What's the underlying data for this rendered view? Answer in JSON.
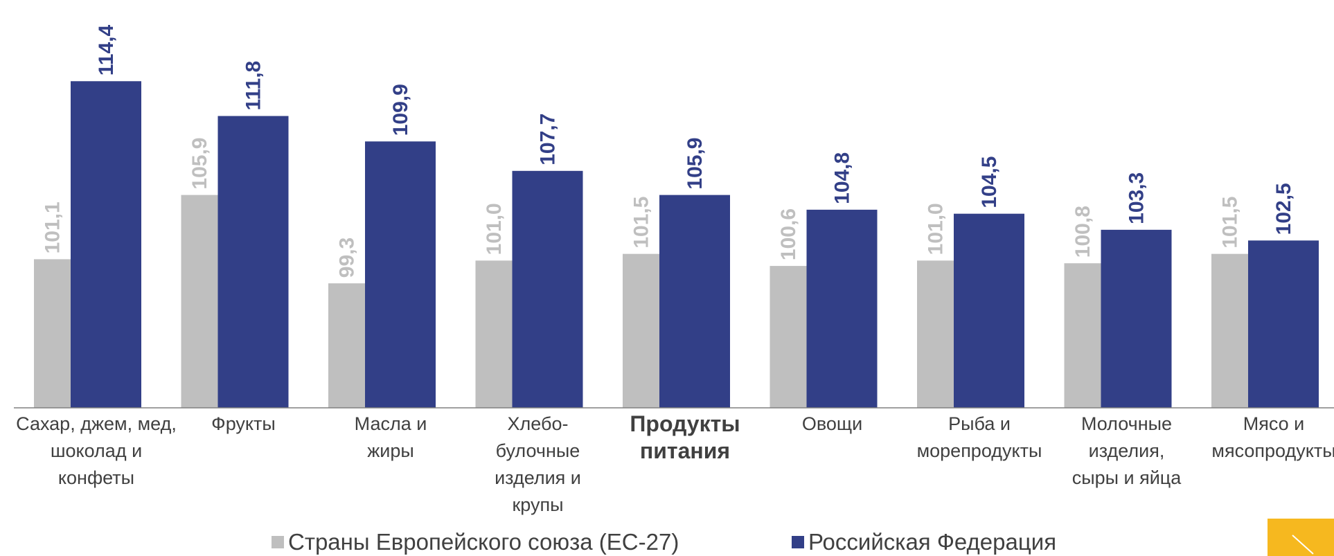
{
  "chart_data": {
    "type": "bar",
    "categories": [
      "Сахар, джем, мед,\nшоколад и\nконфеты",
      "Фрукты",
      "Масла и\nжиры",
      "Хлебо-\nбулочные\nизделия и\nкрупы",
      "Продукты\nпитания",
      "Овощи",
      "Рыба и\nморепродукты",
      "Молочные\nизделия,\nсыры и яйца",
      "Мясо и\nмясопродукты"
    ],
    "highlight": 4,
    "series": [
      {
        "name": "Страны Европейского союза (ЕС-27)",
        "color": "#bfbfbf",
        "values": [
          101.1,
          105.9,
          99.3,
          101.0,
          101.5,
          100.6,
          101.0,
          100.8,
          101.5
        ],
        "value_labels": [
          "101,1",
          "105,9",
          "99,3",
          "101,0",
          "101,5",
          "100,6",
          "101,0",
          "100,8",
          "101,5"
        ]
      },
      {
        "name": "Российская Федерация",
        "color": "#323f87",
        "values": [
          114.4,
          111.8,
          109.9,
          107.7,
          105.9,
          104.8,
          104.5,
          103.3,
          102.5
        ],
        "value_labels": [
          "114,4",
          "111,8",
          "109,9",
          "107,7",
          "105,9",
          "104,8",
          "104,5",
          "103,3",
          "102,5"
        ]
      }
    ],
    "ylim": [
      90,
      120
    ],
    "legend": "bottom"
  }
}
